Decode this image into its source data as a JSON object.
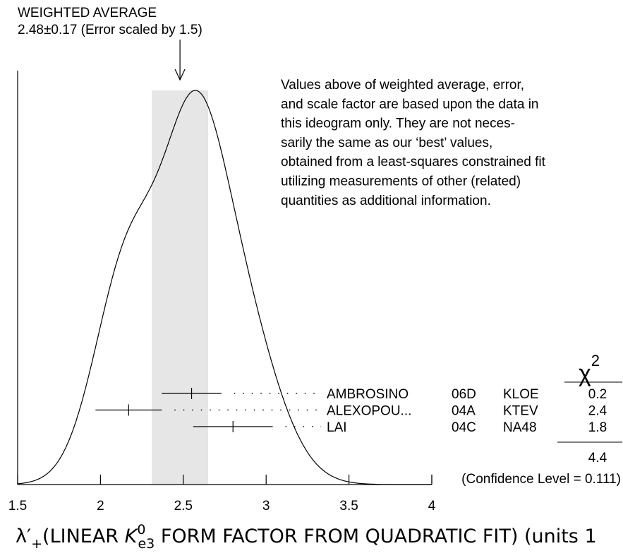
{
  "chart_data": {
    "type": "ideogram",
    "title": "WEIGHTED AVERAGE",
    "subtitle": "2.48±0.17 (Error scaled by 1.5)",
    "average": 2.48,
    "average_error": 0.17,
    "note": [
      "Values above of weighted average, error,",
      "and scale factor are based upon the data in",
      "this ideogram only.  They are not neces-",
      "sarily the same as our ‘best’ values,",
      "obtained from a least-squares constrained fit",
      "utilizing measurements of other (related)",
      "quantities as additional information."
    ],
    "chi_header": {
      "symbol": "χ",
      "superscript": "2"
    },
    "measurements": [
      {
        "name": "AMBROSINO",
        "code": "06D",
        "experiment": "KLOE",
        "value": 2.55,
        "error": 0.18,
        "chi2": 0.2
      },
      {
        "name": "ALEXOPOU...",
        "code": "04A",
        "experiment": "KTEV",
        "value": 2.17,
        "error": 0.2,
        "chi2": 2.4
      },
      {
        "name": "LAI",
        "code": "04C",
        "experiment": "NA48",
        "value": 2.8,
        "error": 0.24,
        "chi2": 1.8
      }
    ],
    "chi2_total": 4.4,
    "confidence_label": "(Confidence Level = 0.111)",
    "x_label_parts": [
      "λ′",
      "+",
      "(LINEAR ",
      "K",
      "0",
      "e3",
      " FORM FACTOR FROM QUADRATIC FIT) (units 1"
    ],
    "xlim": [
      1.5,
      4
    ],
    "xticks": [
      1.5,
      2,
      2.5,
      3,
      3.5,
      4
    ],
    "band_color": "#e6e6e6"
  }
}
